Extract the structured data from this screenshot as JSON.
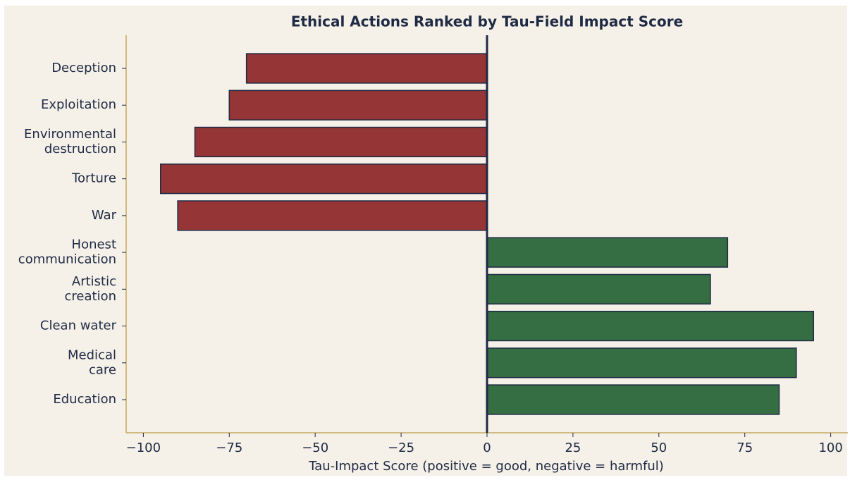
{
  "chart_data": {
    "type": "barh",
    "title": "Ethical Actions Ranked by Tau-Field Impact Score",
    "xlabel": "Tau-Impact Score (positive = good, negative = harmful)",
    "categories": [
      "Deception",
      "Exploitation",
      "Environmental\ndestruction",
      "Torture",
      "War",
      "Honest\ncommunication",
      "Artistic\ncreation",
      "Clean water",
      "Medical\ncare",
      "Education"
    ],
    "values": [
      -70,
      -75,
      -85,
      -95,
      -90,
      70,
      65,
      95,
      90,
      85
    ],
    "colors": [
      "#963535",
      "#963535",
      "#963535",
      "#963535",
      "#963535",
      "#356e42",
      "#356e42",
      "#356e42",
      "#356e42",
      "#356e42"
    ],
    "xlim": [
      -105,
      105
    ],
    "xticks": [
      {
        "value": -100,
        "label": "−100"
      },
      {
        "value": -75,
        "label": "−75"
      },
      {
        "value": -50,
        "label": "−50"
      },
      {
        "value": -25,
        "label": "−25"
      },
      0,
      25,
      50,
      75,
      100
    ],
    "grid": false
  }
}
